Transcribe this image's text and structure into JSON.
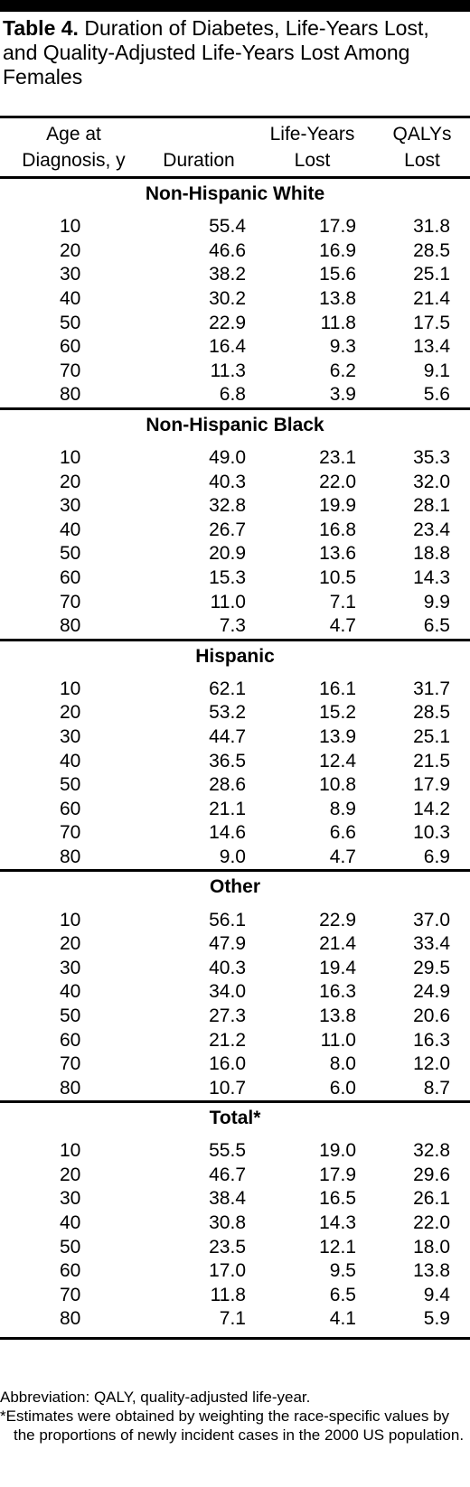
{
  "title": {
    "label": "Table 4.",
    "text": "Duration of Diabetes, Life-Years Lost, and Quality-Adjusted Life-Years Lost Among Females"
  },
  "columns": [
    {
      "line1": "Age at",
      "line2": "Diagnosis, y"
    },
    {
      "line1": "",
      "line2": "Duration"
    },
    {
      "line1": "Life-Years",
      "line2": "Lost"
    },
    {
      "line1": "QALYs",
      "line2": "Lost"
    }
  ],
  "groups": [
    {
      "name": "Non-Hispanic White",
      "rows": [
        [
          "10",
          "55.4",
          "17.9",
          "31.8"
        ],
        [
          "20",
          "46.6",
          "16.9",
          "28.5"
        ],
        [
          "30",
          "38.2",
          "15.6",
          "25.1"
        ],
        [
          "40",
          "30.2",
          "13.8",
          "21.4"
        ],
        [
          "50",
          "22.9",
          "11.8",
          "17.5"
        ],
        [
          "60",
          "16.4",
          "9.3",
          "13.4"
        ],
        [
          "70",
          "11.3",
          "6.2",
          "9.1"
        ],
        [
          "80",
          "6.8",
          "3.9",
          "5.6"
        ]
      ]
    },
    {
      "name": "Non-Hispanic Black",
      "rows": [
        [
          "10",
          "49.0",
          "23.1",
          "35.3"
        ],
        [
          "20",
          "40.3",
          "22.0",
          "32.0"
        ],
        [
          "30",
          "32.8",
          "19.9",
          "28.1"
        ],
        [
          "40",
          "26.7",
          "16.8",
          "23.4"
        ],
        [
          "50",
          "20.9",
          "13.6",
          "18.8"
        ],
        [
          "60",
          "15.3",
          "10.5",
          "14.3"
        ],
        [
          "70",
          "11.0",
          "7.1",
          "9.9"
        ],
        [
          "80",
          "7.3",
          "4.7",
          "6.5"
        ]
      ]
    },
    {
      "name": "Hispanic",
      "rows": [
        [
          "10",
          "62.1",
          "16.1",
          "31.7"
        ],
        [
          "20",
          "53.2",
          "15.2",
          "28.5"
        ],
        [
          "30",
          "44.7",
          "13.9",
          "25.1"
        ],
        [
          "40",
          "36.5",
          "12.4",
          "21.5"
        ],
        [
          "50",
          "28.6",
          "10.8",
          "17.9"
        ],
        [
          "60",
          "21.1",
          "8.9",
          "14.2"
        ],
        [
          "70",
          "14.6",
          "6.6",
          "10.3"
        ],
        [
          "80",
          "9.0",
          "4.7",
          "6.9"
        ]
      ]
    },
    {
      "name": "Other",
      "rows": [
        [
          "10",
          "56.1",
          "22.9",
          "37.0"
        ],
        [
          "20",
          "47.9",
          "21.4",
          "33.4"
        ],
        [
          "30",
          "40.3",
          "19.4",
          "29.5"
        ],
        [
          "40",
          "34.0",
          "16.3",
          "24.9"
        ],
        [
          "50",
          "27.3",
          "13.8",
          "20.6"
        ],
        [
          "60",
          "21.2",
          "11.0",
          "16.3"
        ],
        [
          "70",
          "16.0",
          "8.0",
          "12.0"
        ],
        [
          "80",
          "10.7",
          "6.0",
          "8.7"
        ]
      ]
    },
    {
      "name": "Total*",
      "rows": [
        [
          "10",
          "55.5",
          "19.0",
          "32.8"
        ],
        [
          "20",
          "46.7",
          "17.9",
          "29.6"
        ],
        [
          "30",
          "38.4",
          "16.5",
          "26.1"
        ],
        [
          "40",
          "30.8",
          "14.3",
          "22.0"
        ],
        [
          "50",
          "23.5",
          "12.1",
          "18.0"
        ],
        [
          "60",
          "17.0",
          "9.5",
          "13.8"
        ],
        [
          "70",
          "11.8",
          "6.5",
          "9.4"
        ],
        [
          "80",
          "7.1",
          "4.1",
          "5.9"
        ]
      ]
    }
  ],
  "footnotes": {
    "abbreviation": "Abbreviation: QALY, quality-adjusted life-year.",
    "asterisk": "*Estimates were obtained by weighting the race-specific values by the proportions of newly incident cases in the 2000 US population."
  }
}
